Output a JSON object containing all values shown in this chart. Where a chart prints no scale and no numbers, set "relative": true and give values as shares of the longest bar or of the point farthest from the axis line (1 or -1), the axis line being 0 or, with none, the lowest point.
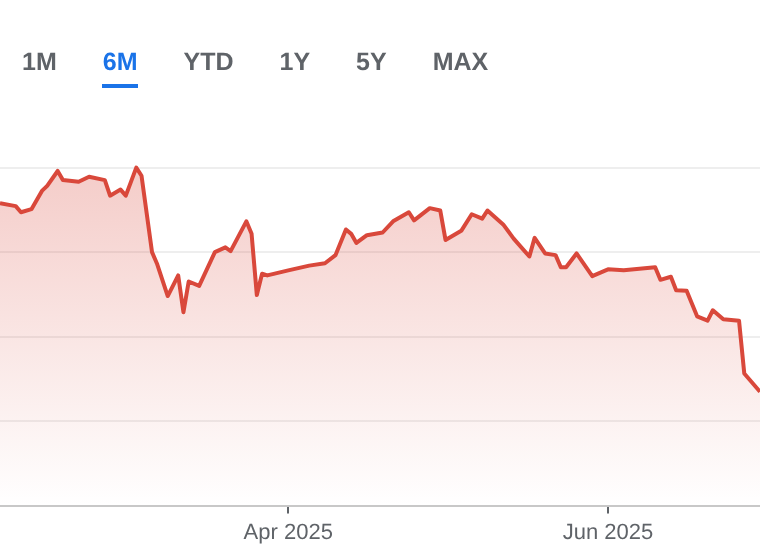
{
  "chart_data": {
    "type": "area",
    "relative": true,
    "legend": false,
    "grid": "y",
    "marker": "none",
    "line_style": "solid",
    "annotations": [
      "1M",
      "6M",
      "YTD",
      "1Y",
      "5Y",
      "MAX"
    ],
    "xlim": [
      "2025-02-05",
      "2025-06-30"
    ],
    "xticks": [
      {
        "value": "2025-04-01",
        "label": "Apr 2025"
      },
      {
        "value": "2025-06-01",
        "label": "Jun 2025"
      }
    ],
    "x": [
      "2025-02-05",
      "2025-02-08",
      "2025-02-09",
      "2025-02-11",
      "2025-02-13",
      "2025-02-14",
      "2025-02-16",
      "2025-02-17",
      "2025-02-20",
      "2025-02-22",
      "2025-02-25",
      "2025-02-26",
      "2025-02-28",
      "2025-03-01",
      "2025-03-03",
      "2025-03-04",
      "2025-03-06",
      "2025-03-07",
      "2025-03-09",
      "2025-03-11",
      "2025-03-12",
      "2025-03-13",
      "2025-03-15",
      "2025-03-18",
      "2025-03-20",
      "2025-03-21",
      "2025-03-24",
      "2025-03-25",
      "2025-03-26",
      "2025-03-27",
      "2025-03-28",
      "2025-04-01",
      "2025-04-05",
      "2025-04-08",
      "2025-04-10",
      "2025-04-12",
      "2025-04-13",
      "2025-04-14",
      "2025-04-16",
      "2025-04-19",
      "2025-04-21",
      "2025-04-24",
      "2025-04-25",
      "2025-04-28",
      "2025-04-30",
      "2025-05-01",
      "2025-05-04",
      "2025-05-06",
      "2025-05-08",
      "2025-05-09",
      "2025-05-12",
      "2025-05-14",
      "2025-05-17",
      "2025-05-18",
      "2025-05-20",
      "2025-05-22",
      "2025-05-23",
      "2025-05-24",
      "2025-05-26",
      "2025-05-29",
      "2025-06-01",
      "2025-06-04",
      "2025-06-10",
      "2025-06-11",
      "2025-06-13",
      "2025-06-14",
      "2025-06-16",
      "2025-06-18",
      "2025-06-20",
      "2025-06-21",
      "2025-06-23",
      "2025-06-26",
      "2025-06-27",
      "2025-06-30"
    ],
    "series": [
      {
        "color": "#d9483b",
        "values": [
          0.895,
          0.886,
          0.868,
          0.877,
          0.931,
          0.946,
          0.99,
          0.963,
          0.958,
          0.973,
          0.963,
          0.917,
          0.935,
          0.917,
          1,
          0.976,
          0.75,
          0.714,
          0.62,
          0.681,
          0.572,
          0.663,
          0.65,
          0.75,
          0.764,
          0.753,
          0.841,
          0.804,
          0.623,
          0.686,
          0.681,
          0.696,
          0.71,
          0.717,
          0.741,
          0.817,
          0.804,
          0.777,
          0.8,
          0.808,
          0.841,
          0.868,
          0.844,
          0.88,
          0.873,
          0.786,
          0.813,
          0.862,
          0.849,
          0.873,
          0.832,
          0.79,
          0.737,
          0.792,
          0.746,
          0.741,
          0.705,
          0.705,
          0.746,
          0.679,
          0.699,
          0.696,
          0.705,
          0.668,
          0.677,
          0.637,
          0.636,
          0.56,
          0.547,
          0.578,
          0.551,
          0.547,
          0.391,
          0.337
        ]
      }
    ]
  }
}
